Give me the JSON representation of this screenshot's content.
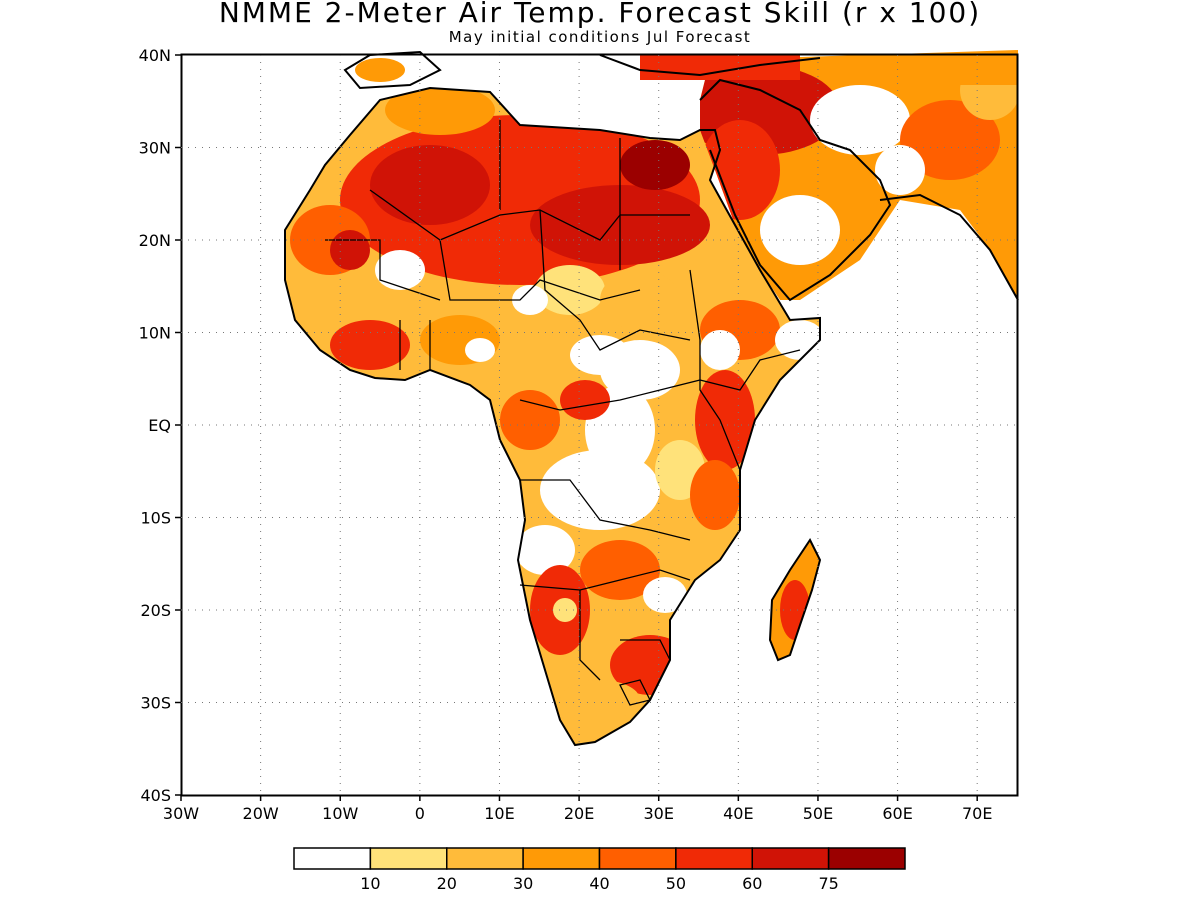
{
  "title": "NMME 2-Meter Air Temp. Forecast Skill (r x 100)",
  "subtitle": "May initial conditions  Jul Forecast",
  "map": {
    "lon_range": [
      -30,
      75
    ],
    "lat_range": [
      -40,
      40
    ],
    "x_ticks": [
      "30W",
      "20W",
      "10W",
      "0",
      "10E",
      "20E",
      "30E",
      "40E",
      "50E",
      "60E",
      "70E"
    ],
    "y_ticks": [
      "40N",
      "30N",
      "20N",
      "10N",
      "EQ",
      "10S",
      "20S",
      "30S",
      "40S"
    ],
    "grid": "dotted",
    "background": "#ffffff"
  },
  "colorbar": {
    "colors": [
      "#ffffff",
      "#ffe27a",
      "#ffbb3a",
      "#ff9a06",
      "#ff5f00",
      "#f02a06",
      "#d01306",
      "#9b0000"
    ],
    "labels": [
      "10",
      "20",
      "30",
      "40",
      "50",
      "60",
      "75"
    ]
  }
}
